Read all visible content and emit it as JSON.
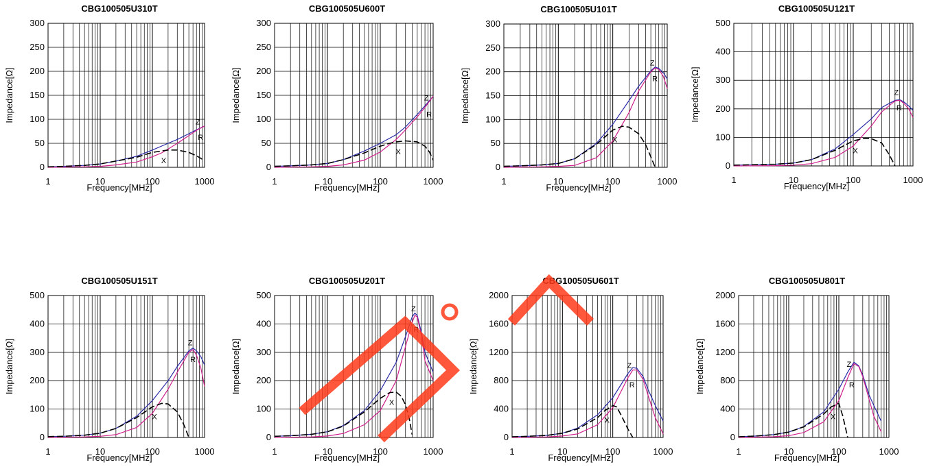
{
  "chart_data": [
    {
      "type": "line",
      "title": "CBG100505U310T",
      "xlabel": "Frequency[MHz]",
      "ylabel": "Impedance[Ω]",
      "xscale": "log",
      "xlim": [
        1,
        1000
      ],
      "ylim": [
        0,
        300
      ],
      "yticks": [
        0,
        50,
        100,
        150,
        200,
        250,
        300
      ],
      "xticks": [
        1,
        10,
        100,
        1000
      ],
      "series": [
        {
          "name": "Z",
          "x": [
            1,
            2,
            5,
            10,
            20,
            50,
            100,
            200,
            300,
            500,
            700,
            1000
          ],
          "y": [
            1,
            2,
            4,
            7,
            13,
            23,
            36,
            50,
            58,
            70,
            78,
            86
          ]
        },
        {
          "name": "R",
          "x": [
            1,
            5,
            10,
            20,
            50,
            100,
            150,
            200,
            300,
            500,
            700,
            1000
          ],
          "y": [
            0,
            1,
            2,
            5,
            11,
            22,
            30,
            38,
            50,
            66,
            77,
            86
          ]
        },
        {
          "name": "X",
          "x": [
            1,
            2,
            5,
            10,
            20,
            50,
            100,
            150,
            200,
            300,
            500,
            700,
            1000
          ],
          "y": [
            1,
            2,
            4,
            7,
            13,
            21,
            31,
            34,
            36,
            36,
            31,
            24,
            14
          ]
        }
      ]
    },
    {
      "type": "line",
      "title": "CBG100505U600T",
      "xlabel": "Frequency[MHz]",
      "ylabel": "Impedance[Ω]",
      "xscale": "log",
      "xlim": [
        1,
        1000
      ],
      "ylim": [
        0,
        300
      ],
      "yticks": [
        0,
        50,
        100,
        150,
        200,
        250,
        300
      ],
      "xticks": [
        1,
        10,
        100,
        1000
      ],
      "series": [
        {
          "name": "Z",
          "x": [
            1,
            2,
            5,
            10,
            20,
            50,
            100,
            200,
            300,
            500,
            700,
            1000
          ],
          "y": [
            2,
            3,
            5,
            8,
            16,
            34,
            50,
            68,
            84,
            110,
            128,
            148
          ]
        },
        {
          "name": "R",
          "x": [
            1,
            5,
            10,
            20,
            50,
            100,
            200,
            300,
            500,
            700,
            1000
          ],
          "y": [
            0,
            1,
            2,
            5,
            15,
            32,
            58,
            78,
            105,
            125,
            148
          ]
        },
        {
          "name": "X",
          "x": [
            1,
            2,
            5,
            10,
            20,
            50,
            100,
            150,
            200,
            300,
            500,
            700,
            850,
            1000
          ],
          "y": [
            2,
            3,
            5,
            8,
            16,
            30,
            44,
            50,
            53,
            55,
            53,
            44,
            32,
            15
          ]
        }
      ]
    },
    {
      "type": "line",
      "title": "CBG100505U101T",
      "xlabel": "Frequency[MHz]",
      "ylabel": "Impedance[Ω]",
      "xscale": "log",
      "xlim": [
        1,
        1000
      ],
      "ylim": [
        0,
        300
      ],
      "yticks": [
        0,
        50,
        100,
        150,
        200,
        250,
        300
      ],
      "xticks": [
        1,
        10,
        100,
        1000
      ],
      "series": [
        {
          "name": "Z",
          "x": [
            1,
            2,
            5,
            10,
            20,
            50,
            100,
            200,
            300,
            500,
            600,
            700,
            850,
            1000
          ],
          "y": [
            2,
            3,
            5,
            8,
            18,
            50,
            90,
            140,
            170,
            202,
            210,
            207,
            198,
            185
          ]
        },
        {
          "name": "R",
          "x": [
            1,
            5,
            10,
            20,
            50,
            100,
            200,
            300,
            500,
            600,
            700,
            850,
            1000
          ],
          "y": [
            0,
            1,
            2,
            4,
            20,
            55,
            115,
            160,
            200,
            208,
            205,
            190,
            165
          ]
        },
        {
          "name": "X",
          "x": [
            1,
            2,
            5,
            10,
            20,
            50,
            100,
            150,
            200,
            300,
            400,
            500,
            600
          ],
          "y": [
            2,
            3,
            5,
            8,
            18,
            48,
            78,
            86,
            84,
            70,
            48,
            22,
            0
          ]
        }
      ]
    },
    {
      "type": "line",
      "title": "CBG100505U121T",
      "xlabel": "Frequency[MHz]",
      "ylabel": "Impedance[Ω]",
      "xscale": "log",
      "xlim": [
        1,
        1000
      ],
      "ylim": [
        0,
        500
      ],
      "yticks": [
        0,
        100,
        200,
        300,
        400,
        500
      ],
      "xticks": [
        1,
        10,
        100,
        1000
      ],
      "series": [
        {
          "name": "Z",
          "x": [
            1,
            2,
            5,
            10,
            20,
            50,
            100,
            200,
            300,
            500,
            600,
            700,
            850,
            1000
          ],
          "y": [
            3,
            4,
            6,
            10,
            22,
            60,
            110,
            165,
            205,
            230,
            232,
            225,
            210,
            195
          ]
        },
        {
          "name": "R",
          "x": [
            1,
            5,
            10,
            20,
            50,
            100,
            200,
            300,
            500,
            600,
            700,
            850,
            1000
          ],
          "y": [
            0,
            1,
            3,
            8,
            30,
            70,
            140,
            190,
            228,
            230,
            220,
            200,
            170
          ]
        },
        {
          "name": "X",
          "x": [
            1,
            2,
            5,
            10,
            20,
            50,
            100,
            150,
            200,
            300,
            400,
            500
          ],
          "y": [
            3,
            4,
            6,
            10,
            22,
            55,
            88,
            96,
            96,
            80,
            40,
            0
          ]
        }
      ]
    },
    {
      "type": "line",
      "title": "CBG100505U151T",
      "xlabel": "Frequency[MHz]",
      "ylabel": "Impedance[Ω]",
      "xscale": "log",
      "xlim": [
        1,
        1000
      ],
      "ylim": [
        0,
        500
      ],
      "yticks": [
        0,
        100,
        200,
        300,
        400,
        500
      ],
      "xticks": [
        1,
        10,
        100,
        1000
      ],
      "series": [
        {
          "name": "Z",
          "x": [
            1,
            2,
            5,
            10,
            20,
            50,
            100,
            200,
            300,
            500,
            600,
            700,
            850,
            1000
          ],
          "y": [
            3,
            4,
            8,
            15,
            32,
            75,
            130,
            200,
            250,
            305,
            315,
            305,
            285,
            255
          ]
        },
        {
          "name": "R",
          "x": [
            1,
            5,
            10,
            20,
            50,
            100,
            200,
            300,
            500,
            600,
            700,
            850,
            1000
          ],
          "y": [
            0,
            2,
            4,
            10,
            35,
            85,
            170,
            230,
            300,
            310,
            290,
            245,
            180
          ]
        },
        {
          "name": "X",
          "x": [
            1,
            2,
            5,
            10,
            20,
            50,
            100,
            150,
            200,
            300,
            400,
            500
          ],
          "y": [
            3,
            4,
            8,
            15,
            32,
            70,
            108,
            120,
            118,
            90,
            45,
            0
          ]
        }
      ]
    },
    {
      "type": "line",
      "title": "CBG100505U201T",
      "xlabel": "Frequency[MHz]",
      "ylabel": "Impedance[Ω]",
      "xscale": "log",
      "xlim": [
        1,
        1000
      ],
      "ylim": [
        0,
        500
      ],
      "yticks": [
        0,
        100,
        200,
        300,
        400,
        500
      ],
      "xticks": [
        1,
        10,
        100,
        1000
      ],
      "series": [
        {
          "name": "Z",
          "x": [
            1,
            2,
            5,
            10,
            20,
            50,
            100,
            200,
            300,
            400,
            450,
            500,
            600,
            700,
            1000
          ],
          "y": [
            4,
            6,
            11,
            20,
            42,
            95,
            165,
            265,
            355,
            425,
            438,
            430,
            370,
            300,
            230
          ]
        },
        {
          "name": "R",
          "x": [
            1,
            5,
            10,
            20,
            50,
            100,
            200,
            300,
            400,
            450,
            500,
            600,
            700,
            1000
          ],
          "y": [
            0,
            2,
            5,
            14,
            45,
            95,
            200,
            320,
            405,
            430,
            425,
            360,
            270,
            200
          ]
        },
        {
          "name": "X",
          "x": [
            1,
            2,
            5,
            10,
            20,
            50,
            100,
            150,
            200,
            250,
            300,
            350,
            400
          ],
          "y": [
            4,
            6,
            11,
            20,
            40,
            90,
            138,
            158,
            160,
            145,
            115,
            70,
            10
          ]
        }
      ]
    },
    {
      "type": "line",
      "title": "CBG100505U601T",
      "xlabel": "Frequency[MHz]",
      "ylabel": "Impedance[Ω]",
      "xscale": "log",
      "xlim": [
        1,
        1000
      ],
      "ylim": [
        0,
        2000
      ],
      "yticks": [
        0,
        400,
        800,
        1200,
        1600,
        2000
      ],
      "xticks": [
        1,
        10,
        100,
        1000
      ],
      "series": [
        {
          "name": "Z",
          "x": [
            1,
            2,
            5,
            10,
            20,
            50,
            100,
            200,
            250,
            300,
            400,
            500,
            700,
            1000
          ],
          "y": [
            10,
            15,
            30,
            60,
            130,
            320,
            560,
            900,
            985,
            975,
            860,
            680,
            450,
            230
          ]
        },
        {
          "name": "R",
          "x": [
            1,
            5,
            10,
            20,
            50,
            100,
            200,
            250,
            300,
            400,
            500,
            700,
            1000
          ],
          "y": [
            0,
            8,
            20,
            50,
            180,
            420,
            840,
            950,
            950,
            820,
            600,
            280,
            50
          ]
        },
        {
          "name": "X",
          "x": [
            1,
            2,
            5,
            10,
            20,
            50,
            70,
            100,
            120,
            150,
            200,
            250
          ],
          "y": [
            10,
            15,
            30,
            60,
            120,
            280,
            380,
            450,
            430,
            300,
            120,
            0
          ]
        }
      ]
    },
    {
      "type": "line",
      "title": "CBG100505U801T",
      "xlabel": "Frequency[MHz]",
      "ylabel": "Impedance[Ω]",
      "xscale": "log",
      "xlim": [
        1,
        1000
      ],
      "ylim": [
        0,
        2000
      ],
      "yticks": [
        0,
        400,
        800,
        1200,
        1600,
        2000
      ],
      "xticks": [
        1,
        10,
        100,
        1000
      ],
      "series": [
        {
          "name": "Z",
          "x": [
            1,
            2,
            5,
            10,
            20,
            50,
            100,
            150,
            200,
            250,
            300,
            400,
            500,
            700
          ],
          "y": [
            10,
            18,
            40,
            75,
            155,
            360,
            680,
            920,
            1060,
            1010,
            880,
            600,
            450,
            230
          ]
        },
        {
          "name": "R",
          "x": [
            1,
            5,
            10,
            20,
            50,
            100,
            150,
            200,
            250,
            300,
            400,
            500,
            700
          ],
          "y": [
            0,
            10,
            25,
            70,
            220,
            520,
            840,
            1040,
            1000,
            860,
            540,
            300,
            80
          ]
        },
        {
          "name": "X",
          "x": [
            1,
            2,
            5,
            10,
            20,
            50,
            70,
            100,
            120,
            150
          ],
          "y": [
            10,
            18,
            40,
            75,
            150,
            330,
            430,
            480,
            300,
            0
          ]
        }
      ]
    }
  ]
}
